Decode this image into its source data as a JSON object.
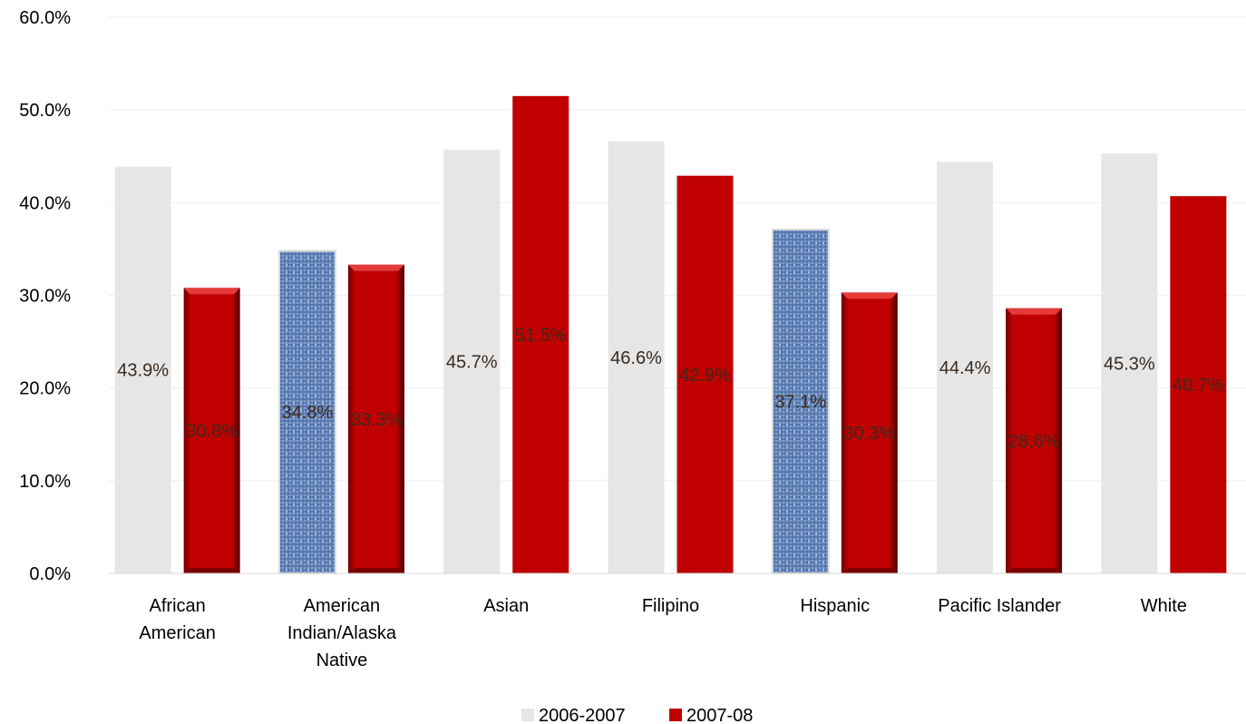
{
  "chart_data": {
    "type": "bar",
    "categories": [
      [
        "African",
        "American"
      ],
      [
        "American",
        "Indian/Alaska",
        "Native"
      ],
      [
        "Asian"
      ],
      [
        "Filipino"
      ],
      [
        "Hispanic"
      ],
      [
        "Pacific Islander"
      ],
      [
        "White"
      ]
    ],
    "series": [
      {
        "name": "2006-2007",
        "values": [
          43.9,
          34.8,
          45.7,
          46.6,
          37.1,
          44.4,
          45.3
        ],
        "labels": [
          "43.9%",
          "34.8%",
          "45.7%",
          "46.6%",
          "37.1%",
          "44.4%",
          "45.3%"
        ],
        "color": "#e6e6e6",
        "textured": [
          false,
          true,
          false,
          false,
          true,
          false,
          false
        ],
        "texture_color": "#5b7fb8"
      },
      {
        "name": "2007-08",
        "values": [
          30.8,
          33.3,
          51.5,
          42.9,
          30.3,
          28.6,
          40.7
        ],
        "labels": [
          "30.8%",
          "33.3%",
          "51.5%",
          "42.9%",
          "30.3%",
          "28.6%",
          "40.7%"
        ],
        "color": "#c00000",
        "beveled": [
          true,
          true,
          false,
          false,
          true,
          true,
          false
        ]
      }
    ],
    "y_ticks": [
      "0.0%",
      "10.0%",
      "20.0%",
      "30.0%",
      "40.0%",
      "50.0%",
      "60.0%"
    ],
    "ylim": [
      0,
      60
    ],
    "grid": true,
    "legend": "bottom",
    "title": "",
    "xlabel": "",
    "ylabel": ""
  }
}
